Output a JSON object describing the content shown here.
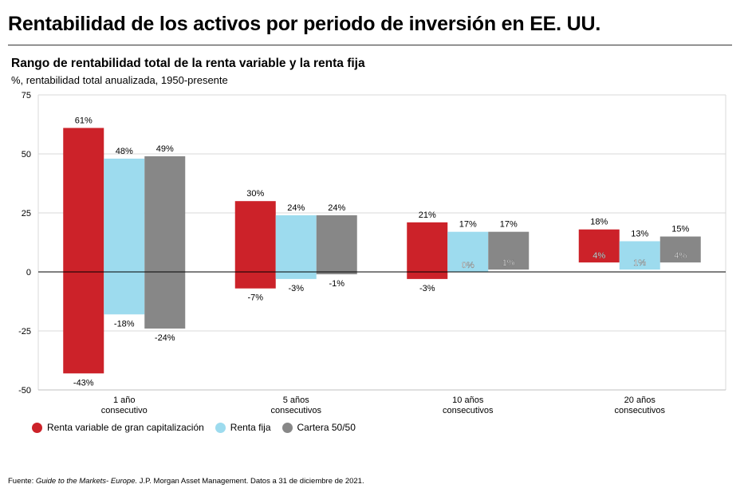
{
  "page": {
    "title": "Rentabilidad de los activos por periodo de inversión en EE. UU.",
    "source_prefix": "Fuente: ",
    "source_italic": "Guide to the Markets- Europe.",
    "source_rest": " J.P. Morgan Asset Management. Datos a 31 de diciembre de 2021."
  },
  "chart_data": {
    "type": "bar",
    "subtype": "floating-range",
    "title": "Rango de rentabilidad total de la renta variable y la renta fija",
    "subtitle": "%, rentabilidad total anualizada, 1950-presente",
    "categories": [
      [
        "1 año",
        "consecutivo"
      ],
      [
        "5 años",
        "consecutivos"
      ],
      [
        "10 años",
        "consecutivos"
      ],
      [
        "20 años",
        "consecutivos"
      ]
    ],
    "ylim": [
      -50,
      75
    ],
    "yticks": [
      75,
      50,
      25,
      0,
      -25,
      -50
    ],
    "grid": true,
    "legend_position": "bottom-left",
    "series": [
      {
        "name": "Renta variable de gran capitalización",
        "color": "#cc2229",
        "max": [
          61,
          30,
          21,
          18
        ],
        "min": [
          -43,
          -7,
          -3,
          4
        ],
        "max_labels": [
          "61%",
          "30%",
          "21%",
          "18%"
        ],
        "min_labels": [
          "-43%",
          "-7%",
          "-3%",
          "4%"
        ]
      },
      {
        "name": "Renta fija",
        "color": "#9ddbee",
        "max": [
          48,
          24,
          17,
          13
        ],
        "min": [
          -18,
          -3,
          0,
          1
        ],
        "max_labels": [
          "48%",
          "24%",
          "17%",
          "13%"
        ],
        "min_labels": [
          "-18%",
          "-3%",
          "0%",
          "1%"
        ]
      },
      {
        "name": "Cartera 50/50",
        "color": "#878787",
        "max": [
          49,
          24,
          17,
          15
        ],
        "min": [
          -24,
          -1,
          1,
          4
        ],
        "max_labels": [
          "49%",
          "24%",
          "17%",
          "15%"
        ],
        "min_labels": [
          "-24%",
          "-1%",
          "1%",
          "4%"
        ]
      }
    ]
  }
}
